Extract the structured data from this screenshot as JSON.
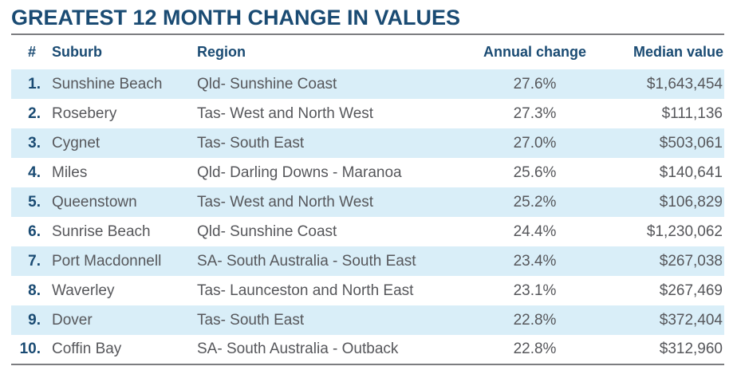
{
  "title": "GREATEST 12 MONTH CHANGE IN VALUES",
  "colors": {
    "navy": "#1a4b73",
    "text-gray": "#56575b",
    "row-alt": "#d9eef8",
    "rule-gray": "#7c7d80"
  },
  "table": {
    "columns": {
      "rank": "#",
      "suburb": "Suburb",
      "region": "Region",
      "annual_change": "Annual change",
      "median_value": "Median value"
    },
    "rows": [
      {
        "rank": "1.",
        "suburb": "Sunshine Beach",
        "region": "Qld- Sunshine Coast",
        "annual_change": "27.6%",
        "median_value": "$1,643,454"
      },
      {
        "rank": "2.",
        "suburb": "Rosebery",
        "region": "Tas- West and North West",
        "annual_change": "27.3%",
        "median_value": "$111,136"
      },
      {
        "rank": "3.",
        "suburb": "Cygnet",
        "region": "Tas- South East",
        "annual_change": "27.0%",
        "median_value": "$503,061"
      },
      {
        "rank": "4.",
        "suburb": "Miles",
        "region": "Qld- Darling Downs - Maranoa",
        "annual_change": "25.6%",
        "median_value": "$140,641"
      },
      {
        "rank": "5.",
        "suburb": "Queenstown",
        "region": "Tas- West and North West",
        "annual_change": "25.2%",
        "median_value": "$106,829"
      },
      {
        "rank": "6.",
        "suburb": "Sunrise Beach",
        "region": "Qld- Sunshine Coast",
        "annual_change": "24.4%",
        "median_value": "$1,230,062"
      },
      {
        "rank": "7.",
        "suburb": "Port Macdonnell",
        "region": "SA- South Australia - South East",
        "annual_change": "23.4%",
        "median_value": "$267,038"
      },
      {
        "rank": "8.",
        "suburb": "Waverley",
        "region": "Tas- Launceston and North East",
        "annual_change": "23.1%",
        "median_value": "$267,469"
      },
      {
        "rank": "9.",
        "suburb": "Dover",
        "region": "Tas- South East",
        "annual_change": "22.8%",
        "median_value": "$372,404"
      },
      {
        "rank": "10.",
        "suburb": "Coffin Bay",
        "region": "SA- South Australia - Outback",
        "annual_change": "22.8%",
        "median_value": "$312,960"
      }
    ]
  }
}
